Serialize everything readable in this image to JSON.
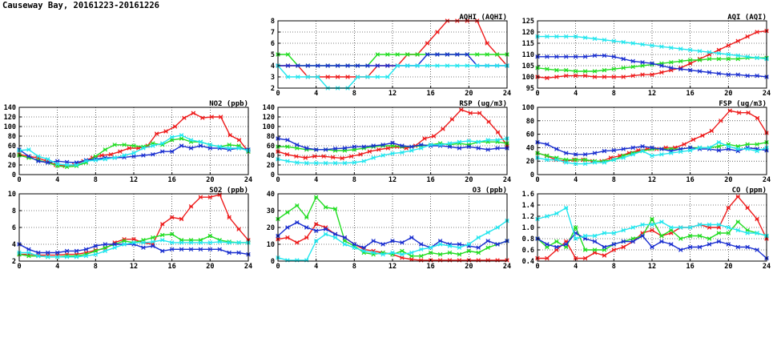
{
  "page_title": "Causeway Bay, 20161223-20161226",
  "colors": {
    "red": "#ee1c1c",
    "green": "#22dd22",
    "blue": "#1a2fd0",
    "cyan": "#22e6ee"
  },
  "chart_data": [
    {
      "id": "aqhi",
      "type": "line",
      "title": "AQHI (AQHI)",
      "xlim": [
        0,
        24
      ],
      "xticks": [
        "0",
        "4",
        "8",
        "12",
        "16",
        "20",
        "24"
      ],
      "ylim": [
        2,
        8
      ],
      "yticks": [
        "2",
        "3",
        "4",
        "5",
        "6",
        "7",
        "8"
      ],
      "grid": true,
      "series": [
        {
          "color": "red",
          "y": [
            4,
            4,
            4,
            3,
            3,
            3,
            3,
            3,
            3,
            3,
            4,
            4,
            4,
            5,
            5,
            6,
            7,
            8,
            8,
            8,
            8,
            6,
            5,
            4
          ]
        },
        {
          "color": "green",
          "y": [
            5,
            5,
            4,
            4,
            4,
            4,
            4,
            4,
            4,
            4,
            5,
            5,
            5,
            5,
            5,
            5,
            5,
            5,
            5,
            5,
            5,
            5,
            5,
            5
          ]
        },
        {
          "color": "blue",
          "y": [
            4,
            4,
            4,
            4,
            4,
            4,
            4,
            4,
            4,
            4,
            4,
            4,
            4,
            4,
            4,
            5,
            5,
            5,
            5,
            5,
            4,
            4,
            4,
            4
          ]
        },
        {
          "color": "cyan",
          "y": [
            4,
            3,
            3,
            3,
            3,
            2,
            2,
            2,
            3,
            3,
            3,
            3,
            4,
            4,
            4,
            4,
            4,
            4,
            4,
            4,
            4,
            4,
            4,
            4
          ]
        }
      ]
    },
    {
      "id": "aqi",
      "type": "line",
      "title": "AQI (AQI)",
      "xlim": [
        0,
        24
      ],
      "xticks": [
        "0",
        "4",
        "8",
        "12",
        "16",
        "20",
        "24"
      ],
      "ylim": [
        95,
        125
      ],
      "yticks": [
        "95",
        "100",
        "105",
        "110",
        "115",
        "120",
        "125"
      ],
      "grid": true,
      "series": [
        {
          "color": "red",
          "y": [
            100,
            99.5,
            100,
            100.5,
            100.5,
            100.5,
            100,
            100,
            100,
            100,
            100.5,
            101,
            101,
            102,
            103,
            104,
            106,
            108,
            110,
            112,
            114,
            116,
            118,
            120,
            120.5
          ]
        },
        {
          "color": "green",
          "y": [
            104,
            103.5,
            103,
            103,
            102.5,
            102.5,
            102.5,
            103,
            103.5,
            104,
            104.5,
            105,
            105.5,
            106,
            106.5,
            107,
            107.5,
            107.5,
            108,
            108,
            108,
            108,
            108.5,
            108.5,
            108.5
          ]
        },
        {
          "color": "blue",
          "y": [
            109,
            109,
            109,
            109,
            109,
            109,
            109.5,
            109.5,
            109,
            108,
            107,
            106.5,
            106,
            105,
            104,
            103.5,
            103,
            102.5,
            102,
            101.5,
            101,
            101,
            100.5,
            100.5,
            100
          ]
        },
        {
          "color": "cyan",
          "y": [
            118,
            118,
            118,
            118,
            118,
            117.5,
            117,
            116.5,
            116,
            115.5,
            115,
            114.5,
            114,
            113.5,
            113,
            112.5,
            112,
            111.5,
            111,
            110.5,
            110,
            109.5,
            109,
            108.5,
            108
          ]
        }
      ]
    },
    {
      "id": "no2",
      "type": "line",
      "title": "NO2 (ppb)",
      "xlim": [
        0,
        24
      ],
      "xticks": [
        "0",
        "4",
        "8",
        "12",
        "16",
        "20",
        "24"
      ],
      "ylim": [
        0,
        140
      ],
      "yticks": [
        "0",
        "20",
        "40",
        "60",
        "80",
        "100",
        "120",
        "140"
      ],
      "grid": true,
      "series": [
        {
          "color": "red",
          "y": [
            42,
            38,
            35,
            28,
            20,
            18,
            20,
            28,
            35,
            40,
            42,
            48,
            55,
            55,
            60,
            85,
            90,
            100,
            118,
            128,
            118,
            120,
            120,
            82,
            72,
            48
          ]
        },
        {
          "color": "green",
          "y": [
            40,
            35,
            30,
            25,
            18,
            16,
            18,
            25,
            38,
            52,
            62,
            62,
            60,
            58,
            65,
            62,
            72,
            75,
            68,
            68,
            62,
            58,
            62,
            60,
            48
          ]
        },
        {
          "color": "blue",
          "y": [
            52,
            38,
            28,
            25,
            28,
            26,
            25,
            30,
            32,
            35,
            35,
            36,
            38,
            40,
            42,
            48,
            48,
            60,
            55,
            60,
            55,
            55,
            52,
            55,
            52
          ]
        },
        {
          "color": "cyan",
          "y": [
            50,
            52,
            38,
            32,
            22,
            20,
            20,
            28,
            30,
            32,
            35,
            40,
            45,
            55,
            60,
            65,
            78,
            82,
            72,
            68,
            62,
            58,
            55,
            55,
            50
          ]
        }
      ]
    },
    {
      "id": "rsp",
      "type": "line",
      "title": "RSP (ug/m3)",
      "xlim": [
        0,
        24
      ],
      "xticks": [
        "0",
        "4",
        "8",
        "12",
        "16",
        "20",
        "24"
      ],
      "ylim": [
        0,
        140
      ],
      "yticks": [
        "0",
        "20",
        "40",
        "60",
        "80",
        "100",
        "120",
        "140"
      ],
      "grid": true,
      "series": [
        {
          "color": "red",
          "y": [
            48,
            42,
            38,
            35,
            38,
            38,
            36,
            34,
            38,
            42,
            48,
            52,
            55,
            58,
            55,
            60,
            75,
            80,
            95,
            115,
            135,
            128,
            128,
            110,
            88,
            60
          ]
        },
        {
          "color": "green",
          "y": [
            58,
            58,
            55,
            52,
            52,
            52,
            50,
            50,
            52,
            55,
            58,
            60,
            60,
            58,
            58,
            60,
            62,
            65,
            62,
            65,
            62,
            68,
            68,
            68,
            65
          ]
        },
        {
          "color": "blue",
          "y": [
            75,
            72,
            62,
            55,
            52,
            52,
            54,
            55,
            58,
            58,
            60,
            62,
            66,
            60,
            58,
            62,
            60,
            60,
            58,
            55,
            58,
            55,
            52,
            55,
            55
          ]
        },
        {
          "color": "cyan",
          "y": [
            32,
            28,
            25,
            24,
            24,
            24,
            24,
            24,
            25,
            28,
            35,
            40,
            44,
            46,
            50,
            55,
            62,
            62,
            65,
            68,
            70,
            68,
            72,
            72,
            75
          ]
        }
      ]
    },
    {
      "id": "fsp",
      "type": "line",
      "title": "FSP (ug/m3)",
      "xlim": [
        0,
        24
      ],
      "xticks": [
        "0",
        "4",
        "8",
        "12",
        "16",
        "20",
        "24"
      ],
      "ylim": [
        0,
        100
      ],
      "yticks": [
        "0",
        "20",
        "40",
        "60",
        "80",
        "100"
      ],
      "grid": true,
      "series": [
        {
          "color": "red",
          "y": [
            32,
            28,
            22,
            20,
            22,
            22,
            20,
            20,
            25,
            28,
            32,
            36,
            38,
            38,
            40,
            40,
            45,
            52,
            58,
            65,
            80,
            95,
            92,
            92,
            84,
            62
          ]
        },
        {
          "color": "green",
          "y": [
            32,
            28,
            25,
            22,
            22,
            22,
            20,
            20,
            22,
            28,
            32,
            35,
            38,
            38,
            38,
            38,
            40,
            40,
            40,
            42,
            45,
            42,
            45,
            45,
            48
          ]
        },
        {
          "color": "blue",
          "y": [
            48,
            45,
            38,
            32,
            30,
            30,
            32,
            35,
            36,
            38,
            40,
            42,
            40,
            38,
            35,
            38,
            40,
            38,
            38,
            36,
            38,
            35,
            40,
            38,
            36
          ]
        },
        {
          "color": "cyan",
          "y": [
            25,
            22,
            22,
            18,
            16,
            16,
            18,
            18,
            22,
            25,
            30,
            35,
            28,
            30,
            32,
            34,
            36,
            40,
            40,
            48,
            42,
            38,
            38,
            35,
            40
          ]
        }
      ]
    },
    {
      "id": "so2",
      "type": "line",
      "title": "SO2 (ppb)",
      "xlim": [
        0,
        24
      ],
      "xticks": [
        "0",
        "4",
        "8",
        "12",
        "16",
        "20",
        "24"
      ],
      "ylim": [
        2,
        10
      ],
      "yticks": [
        "2",
        "4",
        "6",
        "8",
        "10"
      ],
      "grid": true,
      "series": [
        {
          "color": "red",
          "y": [
            2.8,
            2.8,
            2.7,
            2.7,
            2.7,
            2.8,
            2.8,
            3,
            3.3,
            3.5,
            4.2,
            4.6,
            4.6,
            4.2,
            4,
            6.4,
            7.2,
            7,
            8.5,
            9.6,
            9.6,
            9.9,
            7.2,
            5.8,
            4.5
          ]
        },
        {
          "color": "green",
          "y": [
            2.8,
            2.6,
            2.6,
            2.5,
            2.5,
            2.6,
            2.6,
            2.8,
            3.2,
            3.6,
            4,
            4.4,
            4.2,
            4.5,
            4.8,
            5.1,
            5.2,
            4.5,
            4.5,
            4.5,
            5,
            4.5,
            4.3,
            4.2,
            4.2
          ]
        },
        {
          "color": "blue",
          "y": [
            4,
            3.4,
            3,
            3,
            3,
            3.2,
            3.2,
            3.4,
            3.8,
            4,
            4,
            4,
            4,
            3.6,
            3.8,
            3.2,
            3.4,
            3.4,
            3.4,
            3.4,
            3.4,
            3.4,
            3,
            3,
            2.8
          ]
        },
        {
          "color": "cyan",
          "y": [
            3,
            3,
            2.6,
            2.5,
            2.5,
            2.5,
            2.5,
            2.6,
            2.8,
            3.2,
            3.6,
            4,
            4.2,
            4.2,
            4.3,
            4.5,
            4.2,
            4.2,
            4.2,
            4.2,
            4.2,
            4.3,
            4.2,
            4.2,
            4.2
          ]
        }
      ]
    },
    {
      "id": "o3",
      "type": "line",
      "title": "O3 (ppb)",
      "xlim": [
        0,
        24
      ],
      "xticks": [
        "0",
        "4",
        "8",
        "12",
        "16",
        "20",
        "24"
      ],
      "ylim": [
        0,
        40
      ],
      "yticks": [
        "0",
        "10",
        "20",
        "30",
        "40"
      ],
      "grid": true,
      "series": [
        {
          "color": "red",
          "y": [
            13,
            14,
            11,
            14,
            22,
            20,
            16,
            14,
            10,
            7,
            6,
            5,
            4,
            2,
            1,
            0.5,
            0.5,
            0.5,
            0.5,
            0.5,
            0.5,
            0.5,
            0.5,
            0.5,
            0.5
          ]
        },
        {
          "color": "green",
          "y": [
            25,
            29,
            33,
            26,
            38,
            32,
            31,
            12,
            9,
            5,
            4,
            5,
            4,
            6,
            3,
            3,
            5,
            4,
            5,
            4,
            6,
            5,
            8,
            10,
            12
          ]
        },
        {
          "color": "blue",
          "y": [
            15,
            20,
            23,
            20,
            18,
            19,
            16,
            14,
            10,
            8,
            12,
            10,
            12,
            11,
            14,
            10,
            8,
            12,
            10,
            10,
            9,
            8,
            12,
            10,
            12
          ]
        },
        {
          "color": "cyan",
          "y": [
            2,
            0.5,
            0.5,
            0.5,
            12,
            16,
            14,
            10,
            8,
            6,
            5,
            4,
            5,
            4,
            5,
            7,
            8,
            10,
            9,
            8,
            10,
            14,
            17,
            20,
            24
          ]
        }
      ]
    },
    {
      "id": "co",
      "type": "line",
      "title": "CO (ppm)",
      "xlim": [
        0,
        24
      ],
      "xticks": [
        "0",
        "4",
        "8",
        "12",
        "16",
        "20",
        "24"
      ],
      "ylim": [
        0.4,
        1.6
      ],
      "yticks": [
        "0.4",
        "0.6",
        "0.8",
        "1.0",
        "1.2",
        "1.4",
        "1.6"
      ],
      "grid": true,
      "series": [
        {
          "color": "red",
          "y": [
            0.45,
            0.45,
            0.6,
            0.75,
            0.45,
            0.45,
            0.55,
            0.5,
            0.6,
            0.65,
            0.75,
            0.9,
            0.95,
            0.85,
            0.9,
            1.0,
            1.0,
            1.05,
            1.0,
            1.0,
            1.35,
            1.55,
            1.35,
            1.15,
            0.8
          ]
        },
        {
          "color": "green",
          "y": [
            0.8,
            0.65,
            0.75,
            0.65,
            1.0,
            0.6,
            0.6,
            0.6,
            0.7,
            0.75,
            0.8,
            0.85,
            1.15,
            0.85,
            0.95,
            0.8,
            0.85,
            0.85,
            0.8,
            0.9,
            0.9,
            1.1,
            0.95,
            0.9,
            0.85
          ]
        },
        {
          "color": "blue",
          "y": [
            0.8,
            0.7,
            0.65,
            0.7,
            0.9,
            0.8,
            0.75,
            0.65,
            0.7,
            0.75,
            0.75,
            0.85,
            0.65,
            0.75,
            0.7,
            0.6,
            0.65,
            0.65,
            0.7,
            0.75,
            0.7,
            0.65,
            0.65,
            0.6,
            0.45
          ]
        },
        {
          "color": "cyan",
          "y": [
            1.15,
            1.2,
            1.25,
            1.35,
            0.8,
            0.85,
            0.85,
            0.9,
            0.9,
            0.95,
            1.0,
            1.05,
            1.05,
            1.1,
            1.0,
            1.0,
            1.0,
            1.05,
            1.05,
            1.05,
            1.0,
            0.95,
            0.9,
            0.9,
            0.85
          ]
        }
      ]
    }
  ]
}
